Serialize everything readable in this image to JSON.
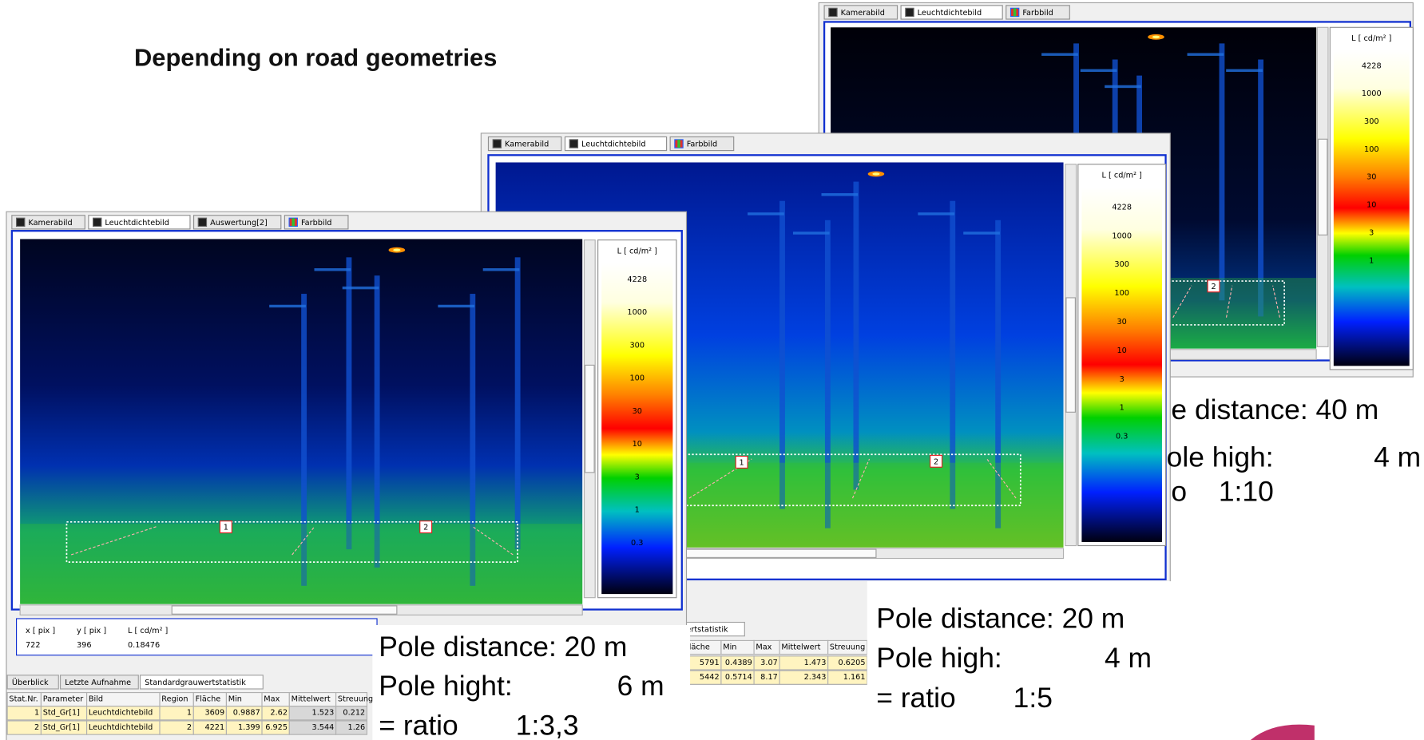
{
  "title": "Depending on road geometries",
  "windows": [
    {
      "tabs": [
        "Kamerabild",
        "Leuchtdichtebild",
        "Farbbild"
      ],
      "colorbar": {
        "unit": "L [ cd/m² ]",
        "labels": [
          "4228",
          "1000",
          "300",
          "100",
          "30",
          "10",
          "3",
          "1"
        ]
      },
      "regions": [
        "2"
      ],
      "caption": [
        [
          "e distance: 40 m"
        ],
        [
          "ole high:",
          "4 m"
        ],
        [
          "o",
          "1:10"
        ]
      ]
    },
    {
      "tabs": [
        "Kamerabild",
        "Leuchtdichtebild",
        "Farbbild"
      ],
      "colorbar": {
        "unit": "L [ cd/m² ]",
        "labels": [
          "4228",
          "1000",
          "300",
          "100",
          "30",
          "10",
          "3",
          "1",
          "0.3"
        ]
      },
      "regions": [
        "1",
        "2"
      ],
      "bottom_tabs": [
        "wertstatistik"
      ],
      "table": {
        "header": [
          "Fläche",
          "Min",
          "Max",
          "Mittelwert",
          "Streuung"
        ],
        "rows": [
          [
            "5791",
            "0.4389",
            "3.07",
            "1.473",
            "0.6205"
          ],
          [
            "5442",
            "0.5714",
            "8.17",
            "2.343",
            "1.161"
          ]
        ]
      },
      "caption": [
        [
          "Pole distance: 20 m"
        ],
        [
          "Pole high:",
          "4 m"
        ],
        [
          "= ratio",
          "1:5"
        ]
      ]
    },
    {
      "tabs": [
        "Kamerabild",
        "Leuchtdichtebild",
        "Auswertung[2]",
        "Farbbild"
      ],
      "colorbar": {
        "unit": "L [ cd/m² ]",
        "labels": [
          "4228",
          "1000",
          "300",
          "100",
          "30",
          "10",
          "3",
          "1",
          "0.3"
        ]
      },
      "regions": [
        "1",
        "2"
      ],
      "readout": {
        "header": [
          "x [ pix ]",
          "y [ pix ]",
          "L [ cd/m² ]"
        ],
        "values": [
          "722",
          "396",
          "0.18476"
        ]
      },
      "bottom_tabs": [
        "Überblick",
        "Letzte Aufnahme",
        "Standardgrauwertstatistik"
      ],
      "table": {
        "header": [
          "Stat.Nr.",
          "Parameter",
          "Bild",
          "Region",
          "Fläche",
          "Min",
          "Max",
          "Mittelwert",
          "Streuung"
        ],
        "rows": [
          [
            "1",
            "Std_Gr[1]",
            "Leuchtdichtebild",
            "1",
            "3609",
            "0.9887",
            "2.62",
            "1.523",
            "0.212"
          ],
          [
            "2",
            "Std_Gr[1]",
            "Leuchtdichtebild",
            "2",
            "4221",
            "1.399",
            "6.925",
            "3.544",
            "1.26"
          ]
        ]
      },
      "caption": [
        [
          "Pole distance: 20 m"
        ],
        [
          "Pole hight:",
          "6 m"
        ],
        [
          "= ratio",
          "1:3,3"
        ]
      ]
    }
  ]
}
